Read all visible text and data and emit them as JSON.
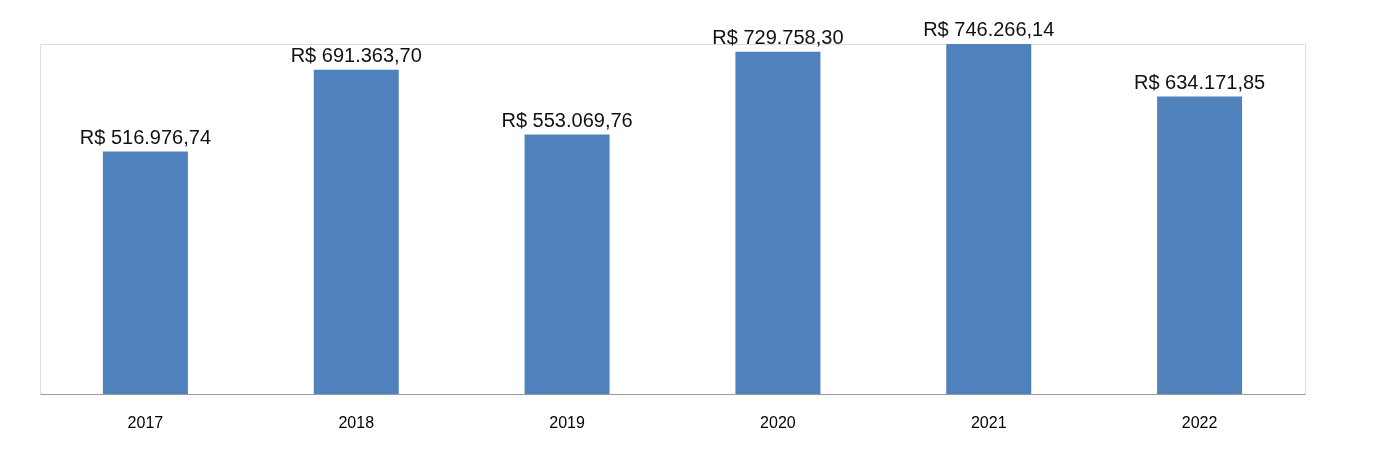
{
  "chart_data": {
    "type": "bar",
    "categories": [
      "2017",
      "2018",
      "2019",
      "2020",
      "2021",
      "2022"
    ],
    "values": [
      516976.74,
      691363.7,
      553069.76,
      729758.3,
      746266.14,
      634171.85
    ],
    "value_labels": [
      "R$ 516.976,74",
      "R$ 691.363,70",
      "R$ 553.069,76",
      "R$ 729.758,30",
      "R$ 746.266,14",
      "R$ 634.171,85"
    ],
    "color": "#4f81bd",
    "grid": false
  }
}
